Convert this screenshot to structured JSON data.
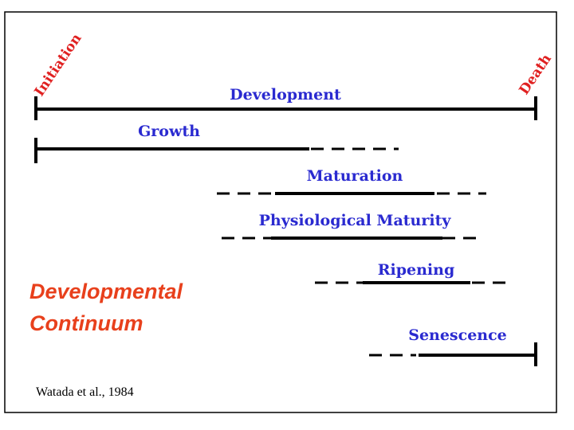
{
  "labels": {
    "start": "Initiation",
    "end": "Death"
  },
  "stages": [
    {
      "label": "Development"
    },
    {
      "label": "Growth"
    },
    {
      "label": "Maturation"
    },
    {
      "label": "Physiological Maturity"
    },
    {
      "label": "Ripening"
    },
    {
      "label": "Senescence"
    }
  ],
  "title": {
    "line1": "Developmental",
    "line2": "Continuum"
  },
  "citation": "Watada et al., 1984"
}
